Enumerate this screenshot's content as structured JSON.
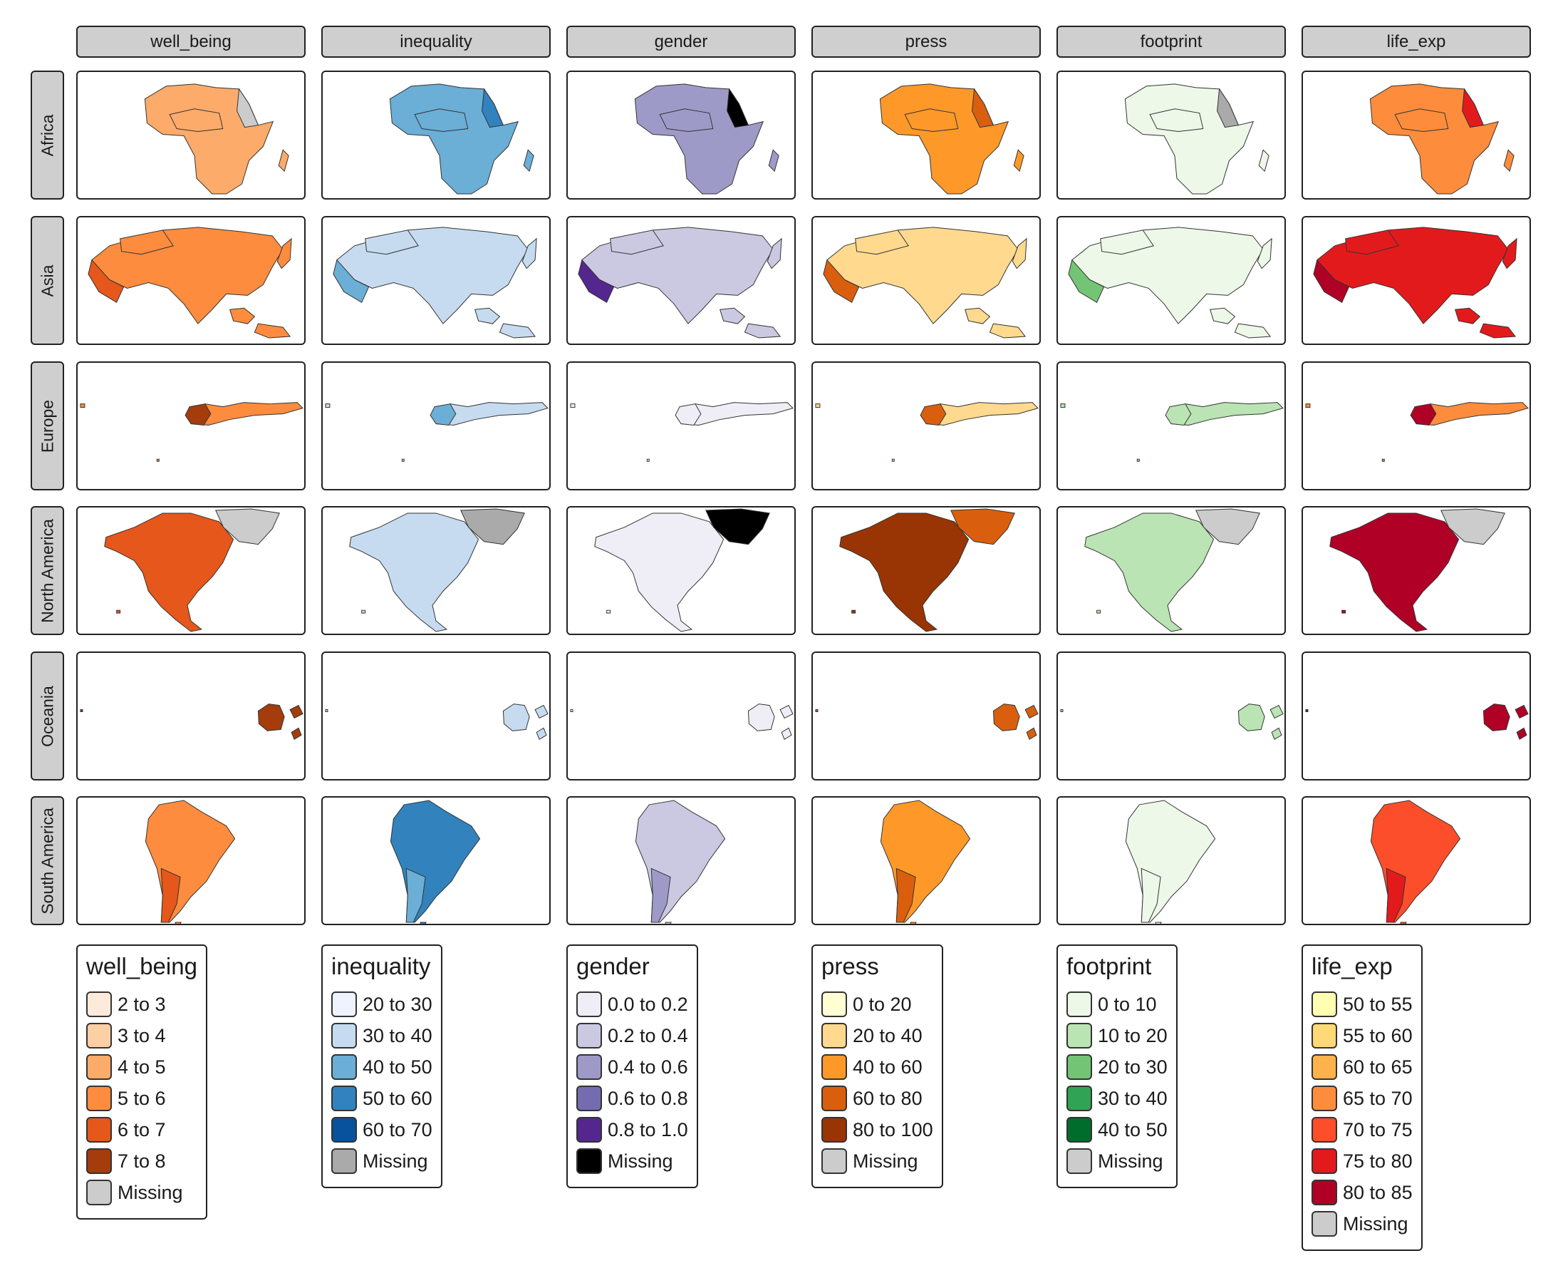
{
  "columns": [
    "well_being",
    "inequality",
    "gender",
    "press",
    "footprint",
    "life_exp"
  ],
  "rows": [
    "Africa",
    "Asia",
    "Europe",
    "North America",
    "Oceania",
    "South America"
  ],
  "legends": [
    {
      "title": "well_being",
      "items": [
        {
          "label": "2 to 3",
          "color": "#feeadb"
        },
        {
          "label": "3 to 4",
          "color": "#fdcfa4"
        },
        {
          "label": "4 to 5",
          "color": "#fdab6a"
        },
        {
          "label": "5 to 6",
          "color": "#fd8c3e"
        },
        {
          "label": "6 to 7",
          "color": "#e5571a"
        },
        {
          "label": "7 to 8",
          "color": "#a43c0b"
        },
        {
          "label": "Missing",
          "color": "#cccccc"
        }
      ]
    },
    {
      "title": "inequality",
      "items": [
        {
          "label": "20 to 30",
          "color": "#eff3fe"
        },
        {
          "label": "30 to 40",
          "color": "#c6dbef"
        },
        {
          "label": "40 to 50",
          "color": "#6baed6"
        },
        {
          "label": "50 to 60",
          "color": "#3182bd"
        },
        {
          "label": "60 to 70",
          "color": "#08519c"
        },
        {
          "label": "Missing",
          "color": "#aaaaaa"
        }
      ]
    },
    {
      "title": "gender",
      "items": [
        {
          "label": "0.0 to 0.2",
          "color": "#efedf5"
        },
        {
          "label": "0.2 to 0.4",
          "color": "#cbc9e2"
        },
        {
          "label": "0.4 to 0.6",
          "color": "#9e9ac8"
        },
        {
          "label": "0.6 to 0.8",
          "color": "#756bb1"
        },
        {
          "label": "0.8 to 1.0",
          "color": "#54278f"
        },
        {
          "label": "Missing",
          "color": "#000000"
        }
      ]
    },
    {
      "title": "press",
      "items": [
        {
          "label": "0 to 20",
          "color": "#ffffd4"
        },
        {
          "label": "20 to 40",
          "color": "#fed98e"
        },
        {
          "label": "40 to 60",
          "color": "#fe9929"
        },
        {
          "label": "60 to 80",
          "color": "#d95f0e"
        },
        {
          "label": "80 to 100",
          "color": "#993404"
        },
        {
          "label": "Missing",
          "color": "#cccccc"
        }
      ]
    },
    {
      "title": "footprint",
      "items": [
        {
          "label": "0 to 10",
          "color": "#edf8e9"
        },
        {
          "label": "10 to 20",
          "color": "#bae4b3"
        },
        {
          "label": "20 to 30",
          "color": "#74c476"
        },
        {
          "label": "30 to 40",
          "color": "#31a354"
        },
        {
          "label": "40 to 50",
          "color": "#006d2c"
        },
        {
          "label": "Missing",
          "color": "#cccccc"
        }
      ]
    },
    {
      "title": "life_exp",
      "items": [
        {
          "label": "50 to 55",
          "color": "#ffffb2"
        },
        {
          "label": "55 to 60",
          "color": "#fed976"
        },
        {
          "label": "60 to 65",
          "color": "#feb24c"
        },
        {
          "label": "65 to 70",
          "color": "#fd8d3c"
        },
        {
          "label": "70 to 75",
          "color": "#fc4e2a"
        },
        {
          "label": "75 to 80",
          "color": "#e31a1c"
        },
        {
          "label": "80 to 85",
          "color": "#b10026"
        },
        {
          "label": "Missing",
          "color": "#cccccc"
        }
      ]
    }
  ],
  "panel_fills": {
    "well_being": {
      "Africa": "#fdab6a",
      "Asia": "#fd8c3e",
      "Europe": "#fd8c3e",
      "North America": "#e5571a",
      "Oceania": "#a43c0b",
      "South America": "#fd8c3e"
    },
    "inequality": {
      "Africa": "#6baed6",
      "Asia": "#c6dbef",
      "Europe": "#c6dbef",
      "North America": "#c6dbef",
      "Oceania": "#c6dbef",
      "South America": "#3182bd"
    },
    "gender": {
      "Africa": "#9e9ac8",
      "Asia": "#cbc9e2",
      "Europe": "#efedf5",
      "North America": "#efedf5",
      "Oceania": "#efedf5",
      "South America": "#cbc9e2"
    },
    "press": {
      "Africa": "#fe9929",
      "Asia": "#fed98e",
      "Europe": "#fed98e",
      "North America": "#993404",
      "Oceania": "#d95f0e",
      "South America": "#fe9929"
    },
    "footprint": {
      "Africa": "#edf8e9",
      "Asia": "#edf8e9",
      "Europe": "#bae4b3",
      "North America": "#bae4b3",
      "Oceania": "#bae4b3",
      "South America": "#edf8e9"
    },
    "life_exp": {
      "Africa": "#fd8d3c",
      "Asia": "#e31a1c",
      "Europe": "#fd8d3c",
      "North America": "#b10026",
      "Oceania": "#b10026",
      "South America": "#fc4e2a"
    }
  },
  "panel_accents": {
    "well_being": {
      "Africa": "#cccccc",
      "Asia": "#e5571a",
      "Europe": "#a43c0b",
      "North America": "#cccccc",
      "Oceania": "#a43c0b",
      "South America": "#e5571a"
    },
    "inequality": {
      "Africa": "#3182bd",
      "Asia": "#6baed6",
      "Europe": "#6baed6",
      "North America": "#aaaaaa",
      "Oceania": "#c6dbef",
      "South America": "#6baed6"
    },
    "gender": {
      "Africa": "#000000",
      "Asia": "#54278f",
      "Europe": "#efedf5",
      "North America": "#000000",
      "Oceania": "#efedf5",
      "South America": "#9e9ac8"
    },
    "press": {
      "Africa": "#d95f0e",
      "Asia": "#d95f0e",
      "Europe": "#d95f0e",
      "North America": "#d95f0e",
      "Oceania": "#d95f0e",
      "South America": "#d95f0e"
    },
    "footprint": {
      "Africa": "#aaaaaa",
      "Asia": "#74c476",
      "Europe": "#bae4b3",
      "North America": "#cccccc",
      "Oceania": "#bae4b3",
      "South America": "#edf8e9"
    },
    "life_exp": {
      "Africa": "#e31a1c",
      "Asia": "#b10026",
      "Europe": "#b10026",
      "North America": "#cccccc",
      "Oceania": "#b10026",
      "South America": "#e31a1c"
    }
  }
}
